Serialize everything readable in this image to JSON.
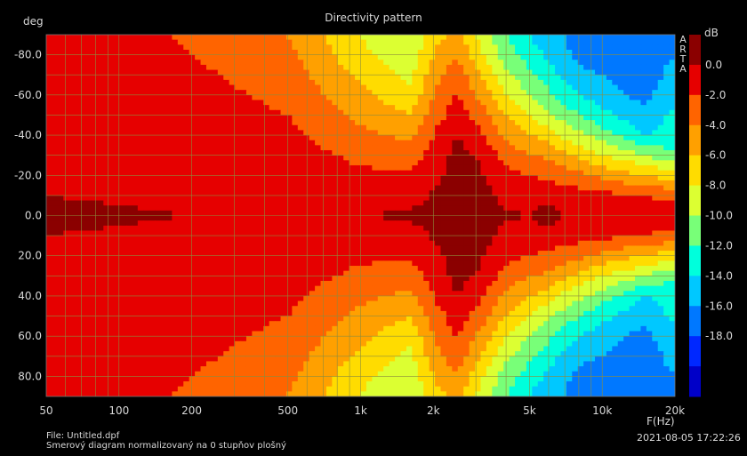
{
  "title": "Directivity pattern",
  "yunit": "deg",
  "cbunit": "dB",
  "brand": "ARTA",
  "xunit": "F(Hz)",
  "file": "File: Untitled.dpf",
  "description": "Smerový diagram normalizovaný na 0 stupňov plošný",
  "timestamp": "2021-08-05  17:22:26",
  "chart_data": {
    "type": "heatmap",
    "title": "Directivity pattern",
    "xlabel": "F(Hz)",
    "ylabel": "deg",
    "xscale": "log",
    "xlim": [
      50,
      20000
    ],
    "ylim": [
      -90,
      90
    ],
    "y_inverted": true,
    "grid": true,
    "x_ticks": [
      {
        "v": 50,
        "label": "50"
      },
      {
        "v": 100,
        "label": "100"
      },
      {
        "v": 200,
        "label": "200"
      },
      {
        "v": 500,
        "label": "500"
      },
      {
        "v": 1000,
        "label": "1k"
      },
      {
        "v": 2000,
        "label": "2k"
      },
      {
        "v": 5000,
        "label": "5k"
      },
      {
        "v": 10000,
        "label": "10k"
      },
      {
        "v": 20000,
        "label": "20k"
      }
    ],
    "y_ticks": [
      {
        "v": -80,
        "label": "-80.0"
      },
      {
        "v": -60,
        "label": "-60.0"
      },
      {
        "v": -40,
        "label": "-40.0"
      },
      {
        "v": -20,
        "label": "-20.0"
      },
      {
        "v": 0,
        "label": "0.0"
      },
      {
        "v": 20,
        "label": "20.0"
      },
      {
        "v": 40,
        "label": "40.0"
      },
      {
        "v": 60,
        "label": "60.0"
      },
      {
        "v": 80,
        "label": "80.0"
      }
    ],
    "colorbar": {
      "unit": "dB",
      "range": [
        -18,
        2
      ],
      "labels": [
        "0.0",
        "-2.0",
        "-4.0",
        "-6.0",
        "-8.0",
        "-10.0",
        "-12.0",
        "-14.0",
        "-16.0",
        "-18.0"
      ],
      "colors": [
        "#8b0000",
        "#e60000",
        "#ff6400",
        "#ffa000",
        "#ffdc00",
        "#dcff32",
        "#78ff78",
        "#00ffdc",
        "#00c8ff",
        "#0078ff",
        "#0028ff",
        "#0000c8"
      ]
    },
    "series": [
      {
        "angles": [
          0,
          10,
          20,
          30,
          40,
          50,
          60,
          70,
          80,
          90
        ],
        "frequencies": [
          50,
          100,
          200,
          500,
          1000,
          1600,
          2000,
          2500,
          3000,
          4000,
          5000,
          6000,
          7000,
          8000,
          10000,
          12500,
          15000,
          20000
        ],
        "levels_dB": [
          [
            0.2,
            0.1,
            0.0,
            0.0,
            0.0,
            0.3,
            0.6,
            1.2,
            1.3,
            0.3,
            0.0,
            0.7,
            0.0,
            0.0,
            0.0,
            0.0,
            0.0,
            0.0
          ],
          [
            0.0,
            -0.1,
            -0.2,
            -0.5,
            -0.9,
            -0.8,
            0.2,
            1.0,
            1.0,
            -0.6,
            -0.8,
            -0.5,
            -1.0,
            -1.2,
            -1.5,
            -1.8,
            -2.2,
            -2.5
          ],
          [
            0.0,
            -0.2,
            -0.3,
            -0.8,
            -1.6,
            -1.7,
            -0.5,
            0.8,
            0.6,
            -1.5,
            -2.0,
            -2.5,
            -3.0,
            -3.5,
            -4.5,
            -5.5,
            -6.0,
            -7.0
          ],
          [
            0.0,
            -0.3,
            -0.5,
            -1.0,
            -2.5,
            -3.0,
            -1.2,
            0.5,
            0.0,
            -2.8,
            -3.8,
            -4.5,
            -5.5,
            -6.5,
            -8.0,
            -9.0,
            -10.0,
            -12.0
          ],
          [
            -0.2,
            -0.4,
            -0.8,
            -1.5,
            -3.5,
            -4.5,
            -2.0,
            0.0,
            -1.0,
            -4.5,
            -6.0,
            -7.0,
            -8.5,
            -9.5,
            -11.0,
            -12.5,
            -14.0,
            -13.0
          ],
          [
            -0.3,
            -0.5,
            -1.0,
            -2.0,
            -4.5,
            -6.0,
            -3.0,
            -1.0,
            -2.5,
            -6.0,
            -8.0,
            -9.5,
            -11.0,
            -12.0,
            -13.5,
            -14.5,
            -15.5,
            -13.5
          ],
          [
            -0.4,
            -0.6,
            -1.3,
            -2.5,
            -5.5,
            -7.5,
            -4.0,
            -1.8,
            -4.0,
            -8.0,
            -10.0,
            -11.5,
            -13.0,
            -14.0,
            -15.0,
            -16.0,
            -16.5,
            -14.5
          ],
          [
            -0.5,
            -0.8,
            -1.6,
            -3.0,
            -6.5,
            -8.5,
            -5.0,
            -2.8,
            -5.5,
            -9.5,
            -11.5,
            -13.0,
            -14.5,
            -15.5,
            -16.0,
            -17.0,
            -17.5,
            -15.0
          ],
          [
            -0.6,
            -1.0,
            -2.0,
            -3.5,
            -7.5,
            -9.5,
            -6.0,
            -4.0,
            -7.0,
            -11.0,
            -13.0,
            -14.5,
            -15.5,
            -16.5,
            -17.0,
            -17.5,
            -17.5,
            -16.0
          ],
          [
            -0.7,
            -1.2,
            -2.3,
            -4.0,
            -8.0,
            -10.0,
            -7.0,
            -5.0,
            -8.0,
            -12.0,
            -14.0,
            -15.5,
            -16.0,
            -17.0,
            -17.5,
            -17.8,
            -17.8,
            -16.5
          ]
        ]
      }
    ]
  }
}
